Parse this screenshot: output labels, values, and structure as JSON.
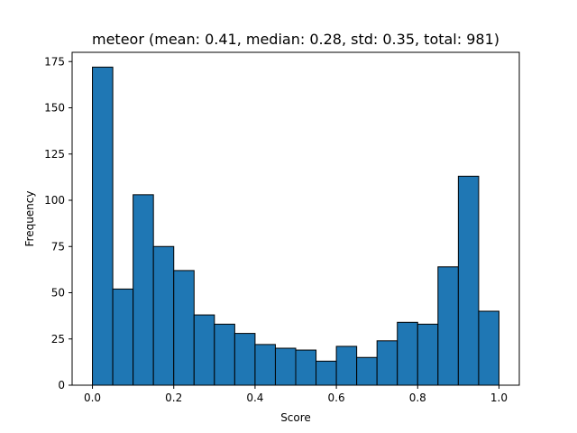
{
  "chart_data": {
    "type": "histogram",
    "title": "meteor (mean: 0.41, median: 0.28, std: 0.35, total: 981)",
    "xlabel": "Score",
    "ylabel": "Frequency",
    "xlim": [
      -0.05,
      1.05
    ],
    "ylim": [
      0,
      180
    ],
    "x_ticks": [
      0.0,
      0.2,
      0.4,
      0.6,
      0.8,
      1.0
    ],
    "x_tick_labels": [
      "0.0",
      "0.2",
      "0.4",
      "0.6",
      "0.8",
      "1.0"
    ],
    "y_ticks": [
      0,
      25,
      50,
      75,
      100,
      125,
      150,
      175
    ],
    "y_tick_labels": [
      "0",
      "25",
      "50",
      "75",
      "100",
      "125",
      "150",
      "175"
    ],
    "bin_edges": [
      0.0,
      0.05,
      0.1,
      0.15,
      0.2,
      0.25,
      0.3,
      0.35,
      0.4,
      0.45,
      0.5,
      0.55,
      0.6,
      0.65,
      0.7,
      0.75,
      0.8,
      0.85,
      0.9,
      0.95,
      1.0
    ],
    "values": [
      172,
      52,
      103,
      75,
      62,
      38,
      33,
      28,
      22,
      20,
      19,
      13,
      21,
      15,
      24,
      34,
      33,
      64,
      113,
      40
    ],
    "bar_color": "#1f77b4",
    "edge_color": "#000000"
  }
}
